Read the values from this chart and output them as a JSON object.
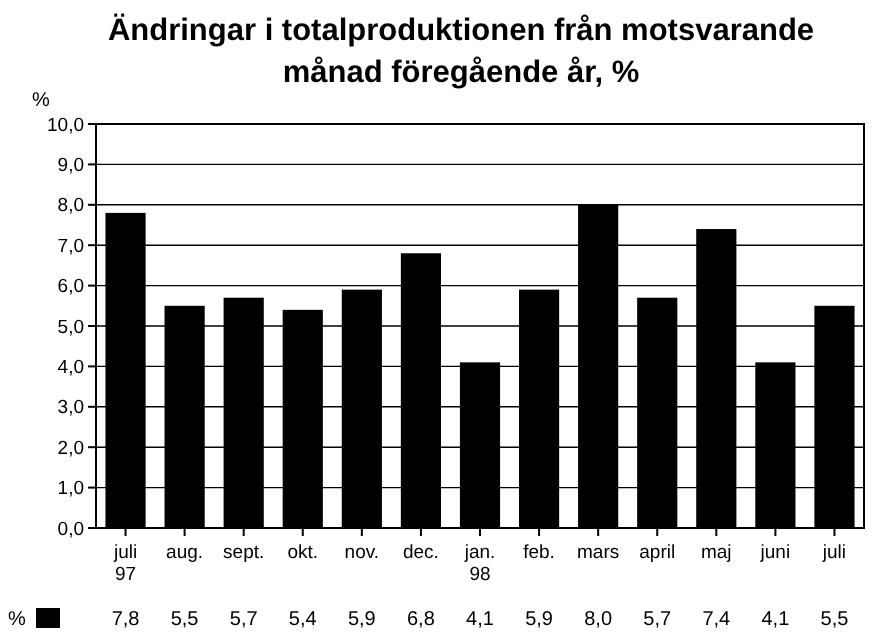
{
  "chart_data": {
    "type": "bar",
    "title": "Ändringar i totalproduktionen från motsvarande\nmånad föregående år, %",
    "ylabel": "%",
    "categories": [
      "juli\n97",
      "aug.",
      "sept.",
      "okt.",
      "nov.",
      "dec.",
      "jan.\n98",
      "feb.",
      "mars",
      "april",
      "maj",
      "juni",
      "juli"
    ],
    "series": [
      {
        "name": "%",
        "color": "#000000",
        "values": [
          7.8,
          5.5,
          5.7,
          5.4,
          5.9,
          6.8,
          4.1,
          5.9,
          8.0,
          5.7,
          7.4,
          4.1,
          5.5
        ],
        "value_labels": [
          "7,8",
          "5,5",
          "5,7",
          "5,4",
          "5,9",
          "6,8",
          "4,1",
          "5,9",
          "8,0",
          "5,7",
          "7,4",
          "4,1",
          "5,5"
        ]
      }
    ],
    "ylim": [
      0,
      10
    ],
    "yticks": [
      {
        "value": 0,
        "label": "0,0"
      },
      {
        "value": 1,
        "label": "1,0"
      },
      {
        "value": 2,
        "label": "2,0"
      },
      {
        "value": 3,
        "label": "3,0"
      },
      {
        "value": 4,
        "label": "4,0"
      },
      {
        "value": 5,
        "label": "5,0"
      },
      {
        "value": 6,
        "label": "6,0"
      },
      {
        "value": 7,
        "label": "7,0"
      },
      {
        "value": 8,
        "label": "8,0"
      },
      {
        "value": 9,
        "label": "9,0"
      },
      {
        "value": 10,
        "label": "10,0"
      }
    ],
    "grid": "y",
    "legend": "bottom"
  }
}
